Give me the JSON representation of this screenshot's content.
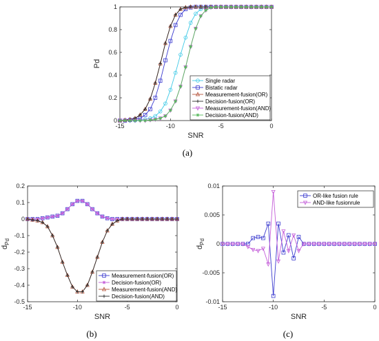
{
  "chart_data": [
    {
      "type": "line",
      "panel": "(a)",
      "xlabel": "SNR",
      "ylabel": "Pd",
      "xlim": [
        -15,
        0
      ],
      "ylim": [
        0,
        1
      ],
      "xticks": [
        "-15",
        "-10",
        "-5",
        "0"
      ],
      "yticks": [
        "0",
        "0.2",
        "0.4",
        "0.6",
        "0.8",
        "1"
      ],
      "legend_position": "bottom-right",
      "grid": false,
      "x": [
        -15,
        -14.5,
        -14,
        -13.5,
        -13,
        -12.5,
        -12,
        -11.5,
        -11,
        -10.5,
        -10,
        -9.5,
        -9,
        -8.5,
        -8,
        -7.5,
        -7,
        -6.5,
        -6,
        -5.5,
        -5,
        -4.5,
        -4,
        -3.5,
        -3,
        -2.5,
        -2,
        -1.5,
        -1,
        -0.5,
        0
      ],
      "series": [
        {
          "name": "Single radar",
          "color": "#3ec9e6",
          "marker": "circle",
          "values": [
            0,
            0,
            0,
            0,
            0.005,
            0.01,
            0.02,
            0.04,
            0.08,
            0.15,
            0.27,
            0.42,
            0.58,
            0.73,
            0.86,
            0.94,
            0.98,
            0.995,
            1,
            1,
            1,
            1,
            1,
            1,
            1,
            1,
            1,
            1,
            1,
            1,
            1
          ]
        },
        {
          "name": "Bistatic radar",
          "color": "#3a3acf",
          "marker": "square",
          "values": [
            0,
            0,
            0.005,
            0.01,
            0.02,
            0.05,
            0.1,
            0.2,
            0.35,
            0.53,
            0.7,
            0.84,
            0.93,
            0.98,
            0.995,
            1,
            1,
            1,
            1,
            1,
            1,
            1,
            1,
            1,
            1,
            1,
            1,
            1,
            1,
            1,
            1
          ]
        },
        {
          "name": "Measurement-fusion(OR)",
          "color": "#b5533a",
          "marker": "triangle",
          "values": [
            0,
            0.005,
            0.01,
            0.02,
            0.05,
            0.1,
            0.19,
            0.33,
            0.5,
            0.68,
            0.83,
            0.93,
            0.98,
            0.995,
            1,
            1,
            1,
            1,
            1,
            1,
            1,
            1,
            1,
            1,
            1,
            1,
            1,
            1,
            1,
            1,
            1
          ]
        },
        {
          "name": "Decision-fusion(OR)",
          "color": "#2a2a2a",
          "marker": "plus",
          "values": [
            0,
            0.005,
            0.01,
            0.02,
            0.05,
            0.1,
            0.19,
            0.33,
            0.5,
            0.68,
            0.83,
            0.93,
            0.98,
            0.995,
            1,
            1,
            1,
            1,
            1,
            1,
            1,
            1,
            1,
            1,
            1,
            1,
            1,
            1,
            1,
            1,
            1
          ]
        },
        {
          "name": "Measurement-fusion(AND)",
          "color": "#c45dd9",
          "marker": "triangle-down",
          "values": [
            0,
            0,
            0,
            0,
            0,
            0,
            0.005,
            0.01,
            0.02,
            0.04,
            0.09,
            0.17,
            0.3,
            0.47,
            0.65,
            0.81,
            0.92,
            0.97,
            0.995,
            1,
            1,
            1,
            1,
            1,
            1,
            1,
            1,
            1,
            1,
            1,
            1
          ]
        },
        {
          "name": "Decision-fusion(AND)",
          "color": "#55b85a",
          "marker": "star",
          "values": [
            0,
            0,
            0,
            0,
            0,
            0,
            0.005,
            0.01,
            0.02,
            0.04,
            0.09,
            0.17,
            0.3,
            0.47,
            0.65,
            0.81,
            0.92,
            0.97,
            0.995,
            1,
            1,
            1,
            1,
            1,
            1,
            1,
            1,
            1,
            1,
            1,
            1
          ]
        }
      ]
    },
    {
      "type": "line",
      "panel": "(b)",
      "xlabel": "SNR",
      "ylabel": "d",
      "ylabel_sub": "Pd",
      "xlim": [
        -15,
        0
      ],
      "ylim": [
        -0.5,
        0.2
      ],
      "xticks": [
        "-15",
        "-10",
        "-5",
        "0"
      ],
      "yticks": [
        "-0.5",
        "-0.4",
        "-0.3",
        "-0.2",
        "-0.1",
        "0",
        "0.1",
        "0.2"
      ],
      "legend_position": "bottom-right",
      "grid": false,
      "x": [
        -15,
        -14.5,
        -14,
        -13.5,
        -13,
        -12.5,
        -12,
        -11.5,
        -11,
        -10.5,
        -10,
        -9.5,
        -9,
        -8.5,
        -8,
        -7.5,
        -7,
        -6.5,
        -6,
        -5.5,
        -5,
        -4.5,
        -4,
        -3.5,
        -3,
        -2.5,
        -2,
        -1.5,
        -1,
        -0.5,
        0
      ],
      "series": [
        {
          "name": "Measurement-fusion(OR)",
          "color": "#3a3acf",
          "marker": "square",
          "values": [
            0,
            0,
            0,
            0.005,
            0.01,
            0.015,
            0.02,
            0.035,
            0.06,
            0.09,
            0.11,
            0.11,
            0.09,
            0.06,
            0.035,
            0.015,
            0.005,
            0,
            0,
            0,
            0,
            0,
            0,
            0,
            0,
            0,
            0,
            0,
            0,
            0,
            0
          ]
        },
        {
          "name": "Decision-fusion(OR)",
          "color": "#c45dd9",
          "marker": "star",
          "values": [
            0,
            0,
            0,
            0.005,
            0.01,
            0.015,
            0.02,
            0.035,
            0.06,
            0.09,
            0.11,
            0.11,
            0.09,
            0.06,
            0.035,
            0.015,
            0.005,
            0,
            0,
            0,
            0,
            0,
            0,
            0,
            0,
            0,
            0,
            0,
            0,
            0,
            0
          ]
        },
        {
          "name": "Measurement-fusion(AND)",
          "color": "#b5533a",
          "marker": "triangle",
          "values": [
            0,
            -0.005,
            -0.01,
            -0.02,
            -0.045,
            -0.1,
            -0.17,
            -0.26,
            -0.34,
            -0.41,
            -0.44,
            -0.44,
            -0.4,
            -0.32,
            -0.23,
            -0.14,
            -0.07,
            -0.03,
            -0.01,
            0,
            0,
            0,
            0,
            0,
            0,
            0,
            0,
            0,
            0,
            0,
            0
          ]
        },
        {
          "name": "Decision-fusion(AND)",
          "color": "#2a2a2a",
          "marker": "plus",
          "values": [
            0,
            -0.005,
            -0.01,
            -0.02,
            -0.045,
            -0.1,
            -0.17,
            -0.26,
            -0.34,
            -0.41,
            -0.44,
            -0.44,
            -0.4,
            -0.32,
            -0.23,
            -0.14,
            -0.07,
            -0.03,
            -0.01,
            0,
            0,
            0,
            0,
            0,
            0,
            0,
            0,
            0,
            0,
            0,
            0
          ]
        }
      ]
    },
    {
      "type": "line",
      "panel": "(c)",
      "xlabel": "SNR",
      "ylabel": "d",
      "ylabel_sub": "Pd",
      "xlim": [
        -15,
        0
      ],
      "ylim": [
        -0.01,
        0.01
      ],
      "xticks": [
        "-15",
        "-10",
        "-5",
        "0"
      ],
      "yticks": [
        "-0.01",
        "-0.005",
        "0",
        "0.005",
        "0.01"
      ],
      "legend_position": "top-right",
      "grid": false,
      "x": [
        -15,
        -14.5,
        -14,
        -13.5,
        -13,
        -12.5,
        -12,
        -11.5,
        -11,
        -10.5,
        -10,
        -9.5,
        -9,
        -8.5,
        -8,
        -7.5,
        -7,
        -6.5,
        -6,
        -5.5,
        -5,
        -4.5,
        -4,
        -3.5,
        -3,
        -2.5,
        -2,
        -1.5,
        -1,
        -0.5,
        0
      ],
      "series": [
        {
          "name": "OR-like fusion rule",
          "color": "#3a3acf",
          "marker": "square",
          "values": [
            0,
            0,
            0,
            0,
            0,
            0,
            0.001,
            0.0012,
            0.001,
            0.0035,
            -0.009,
            0.0035,
            -0.0015,
            0.0015,
            -0.0025,
            0.0012,
            0,
            0,
            0,
            0,
            0,
            0,
            0,
            0,
            0,
            0,
            0,
            0,
            0,
            0,
            0
          ]
        },
        {
          "name": "AND-like fusionrule",
          "color": "#c45dd9",
          "marker": "triangle-down",
          "values": [
            0,
            0,
            0,
            0,
            0,
            -0.0005,
            -0.001,
            -0.0012,
            -0.0008,
            -0.0035,
            0.009,
            -0.003,
            0.0022,
            -0.0012,
            0.0015,
            -0.0012,
            0,
            0,
            0,
            0,
            0,
            0,
            0,
            0,
            0,
            0,
            0,
            0,
            0,
            0,
            0
          ]
        }
      ]
    }
  ],
  "captions": [
    "(a)",
    "(b)",
    "(c)"
  ]
}
